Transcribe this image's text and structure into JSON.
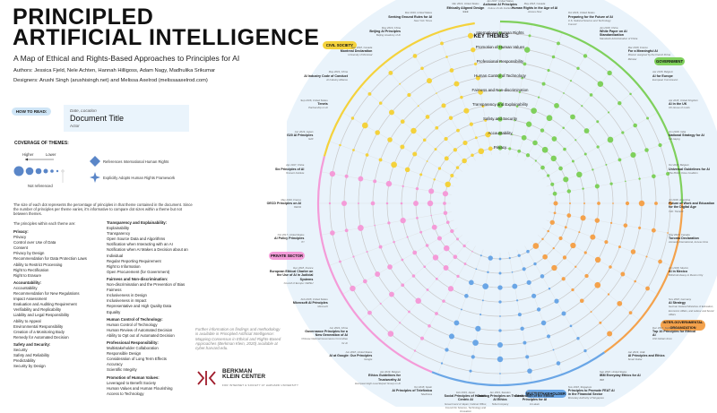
{
  "header": {
    "title_line1": "PRINCIPLED",
    "title_line2": "ARTIFICIAL INTELLIGENCE",
    "subtitle": "A Map of Ethical and Rights-Based Approaches to Principles for AI",
    "authors": "Authors: Jessica Fjeld, Nele Achten, Hannah Hilligoss, Adam Nagy, Madhulika Srikumar",
    "designers": "Designers: Arushi Singh (arushisingh.net) and Melissa Axelrod (melissaaxelrod.com)"
  },
  "how_to": {
    "label": "HOW TO READ:",
    "doc_date": "Date, Location",
    "doc_title": "Document Title",
    "doc_actor": "Actor"
  },
  "coverage": {
    "title": "COVERAGE OF THEMES:",
    "higher": "Higher",
    "lower": "Lower",
    "not_referenced": "Not referenced",
    "legend_hr": "References International Human Rights",
    "legend_fw": "Explicitly Adopts Human Rights Framework",
    "paragraph": "The size of each dot represents the percentage of principles in that theme contained in the document. Since the number of principles per theme varies, it's informative to compare dot sizes within a theme but not between themes.",
    "principles_intro": "The principles within each theme are:"
  },
  "themes_left": [
    {
      "name": "Privacy:",
      "items": [
        "Privacy",
        "Control over Use of Data",
        "Consent",
        "Privacy by Design",
        "Recommendation for Data Protection Laws",
        "Ability to Restrict Processing",
        "Right to Rectification",
        "Right to Erasure"
      ]
    },
    {
      "name": "Accountability:",
      "items": [
        "Accountability",
        "Recommendation for New Regulations",
        "Impact Assessment",
        "Evaluation and Auditing Requirement",
        "Verifiability and Replicability",
        "Liability and Legal Responsibility",
        "Ability to Appeal",
        "Environmental Responsibility",
        "Creation of a Monitoring Body",
        "Remedy for Automated Decision"
      ]
    },
    {
      "name": "Safety and Security:",
      "items": [
        "Security",
        "Safety and Reliability",
        "Predictability",
        "Security by Design"
      ]
    }
  ],
  "themes_right": [
    {
      "name": "Transparency and Explainability:",
      "items": [
        "Explainability",
        "Transparency",
        "Open Source Data and Algorithms",
        "Notification when Interacting with an AI",
        "Notification when AI Makes a Decision about an Individual",
        "Regular Reporting Requirement",
        "Right to Information",
        "Open Procurement (for Government)"
      ]
    },
    {
      "name": "Fairness and Non-discrimination:",
      "items": [
        "Non-discrimination and the Prevention of Bias",
        "Fairness",
        "Inclusiveness in Design",
        "Inclusiveness in Impact",
        "Representative and High Quality Data",
        "Equality"
      ]
    },
    {
      "name": "Human Control of Technology:",
      "items": [
        "Human Control of Technology",
        "Human Review of Automated Decision",
        "Ability to Opt out of Automated Decision"
      ]
    },
    {
      "name": "Professional Responsibility:",
      "items": [
        "Multistakeholder Collaboration",
        "Responsible Design",
        "Consideration of Long Term Effects",
        "Accuracy",
        "Scientific Integrity"
      ]
    },
    {
      "name": "Promotion of Human Values:",
      "items": [
        "Leveraged to Benefit Society",
        "Human Values and Human Flourishing",
        "Access to Technology"
      ]
    }
  ],
  "further_info": "Further information on findings and methodology is available in Principled Artificial Intelligence: Mapping Consensus in Ethical and Rights-Based Approaches (Berkman Klein, 2020) available at cyber.harvard.edu.",
  "berkman": {
    "line1": "BERKMAN",
    "line2": "KLEIN CENTER",
    "line3": "FOR INTERNET & SOCIETY AT HARVARD UNIVERSITY"
  },
  "key_themes": {
    "title": "KEY THEMES",
    "rings": [
      "International Human Rights",
      "Promotion of Human Values",
      "Professional Responsibility",
      "Human Control of Technology",
      "Fairness and Non-discrimination",
      "Transparency and Explainability",
      "Safety and Security",
      "Accountability",
      "Privacy"
    ]
  },
  "sectors": {
    "civil_society": "CIVIL SOCIETY",
    "government": "GOVERNMENT",
    "private_sector": "PRIVATE SECTOR",
    "intergovernmental": "INTER-GOVERNMENTAL ORGANIZATION",
    "multistakeholder": "MULTISTAKEHOLDER"
  },
  "colors": {
    "civil_society": "#f4d23c",
    "government": "#7fd05c",
    "private_sector": "#f49bd8",
    "intergovernmental": "#f4a24c",
    "multistakeholder": "#6aa6e6",
    "ring": "#c9c9c9",
    "ring_bg": "#e9f3fb",
    "ink": "#1a1a1a"
  },
  "documents": [
    {
      "title": "Human Rights in the Age of AI",
      "actor": "Access Now",
      "date": "May 2018, Canada"
    },
    {
      "title": "Preparing for the Future of AI",
      "actor": "U.S. National Science and Technology Council",
      "date": "Oct 2016, United States"
    },
    {
      "title": "White Paper on AI Standardization",
      "actor": "Standards Administration of China",
      "date": "Jan 2018, China"
    },
    {
      "title": "For a Meaningful AI",
      "actor": "Mission assigned by the French Prime Minister",
      "date": "Mar 2018, France"
    },
    {
      "title": "AI for Europe",
      "actor": "European Commission",
      "date": "Apr 2018, Belgium"
    },
    {
      "title": "AI in the UK",
      "actor": "UK House of Lords",
      "date": "Apr 2018, United Kingdom"
    },
    {
      "title": "National Strategy for AI",
      "actor": "Niti Aayog",
      "date": "Jun 2018, India"
    },
    {
      "title": "Universal Guidelines for AI",
      "actor": "The Public Voice Coalition",
      "date": "Oct 2018, Belgium"
    },
    {
      "title": "Future of Work and Education for the Digital Age",
      "actor": "T20: Think20",
      "date": "Jul 2018, Argentina"
    },
    {
      "title": "Toronto Declaration",
      "actor": "Amnesty International, Access Now",
      "date": "May 2018, Canada"
    },
    {
      "title": "AI in Mexico",
      "actor": "British Embassy in Mexico City",
      "date": "Jun 2018, Mexico"
    },
    {
      "title": "AI Strategy",
      "actor": "German Federal Ministries of Education, Economic Affairs, and Labour and Social Affairs",
      "date": "Nov 2018, Germany"
    },
    {
      "title": "Top 10 Principles for Ethical AI",
      "actor": "UNI Global Union",
      "date": "Dec 2017, Switzerland"
    },
    {
      "title": "AI Principles and Ethics",
      "actor": "Smart Dubai",
      "date": "Jan 2019, UAE"
    },
    {
      "title": "IBM Everyday Ethics for AI",
      "actor": "IBM",
      "date": "Sep 2018, United States"
    },
    {
      "title": "Principles to Promote FEAT AI in the Financial Sector",
      "actor": "Monetary Authority of Singapore",
      "date": "Nov 2018, Singapore"
    },
    {
      "title": "Declaration of the Ethical Principles for AI",
      "actor": "IA Latam",
      "date": "Feb 2019, Chile"
    },
    {
      "title": "Guiding Principles on Trusted AI Ethics",
      "actor": "Telia Company",
      "date": "Jan 2019, Sweden"
    },
    {
      "title": "Social Principles of Human-Centric AI",
      "actor": "Government of Japan; Cabinet Office; Council for Science, Technology and Innovation",
      "date": "Feb 2019, Japan"
    },
    {
      "title": "AI Principles of Telefónica",
      "actor": "Telefónica",
      "date": "Oct 2018, Spain"
    },
    {
      "title": "Ethics Guidelines for Trustworthy AI",
      "actor": "European High Level Expert Group on AI",
      "date": "Apr 2019, Belgium"
    },
    {
      "title": "AI at Google: Our Principles",
      "actor": "Google",
      "date": "Jun 2018, United States"
    },
    {
      "title": "Governance Principles for a New Generation of AI",
      "actor": "Chinese National Governance Committee for AI",
      "date": "Jun 2019, China"
    },
    {
      "title": "Microsoft AI Principles",
      "actor": "Microsoft",
      "date": "Feb 2018, United States"
    },
    {
      "title": "European Ethical Charter on the Use of AI in Judicial Systems",
      "actor": "Council of Europe: CEPEJ",
      "date": "Dec 2018, France"
    },
    {
      "title": "AI Policy Principles",
      "actor": "ITI",
      "date": "Oct 2017, United States"
    },
    {
      "title": "OECD Principles on AI",
      "actor": "OECD",
      "date": "May 2019, France"
    },
    {
      "title": "Six Principles of AI",
      "actor": "Tencent Institute",
      "date": "Apr 2017, China"
    },
    {
      "title": "G20 AI Principles",
      "actor": "G20",
      "date": "Jun 2019, Japan"
    },
    {
      "title": "Tenets",
      "actor": "Partnership on AI",
      "date": "Sep 2016, United States"
    },
    {
      "title": "AI Industry Code of Conduct",
      "actor": "AI Industry Alliance",
      "date": "May 2019, China"
    },
    {
      "title": "Montreal Declaration",
      "actor": "University of Montreal",
      "date": "Dec 2018, Canada"
    },
    {
      "title": "Beijing AI Principles",
      "actor": "Beijing Academy of AI",
      "date": "May 2019, China"
    },
    {
      "title": "Seeking Ground Rules for AI",
      "actor": "New York Times",
      "date": "Mar 2019, United States"
    },
    {
      "title": "Ethically Aligned Design",
      "actor": "IEEE",
      "date": "Mar 2019, United States"
    },
    {
      "title": "Asilomar AI Principles",
      "actor": "Future of Life Institute",
      "date": "Jan 2017, United States"
    }
  ]
}
